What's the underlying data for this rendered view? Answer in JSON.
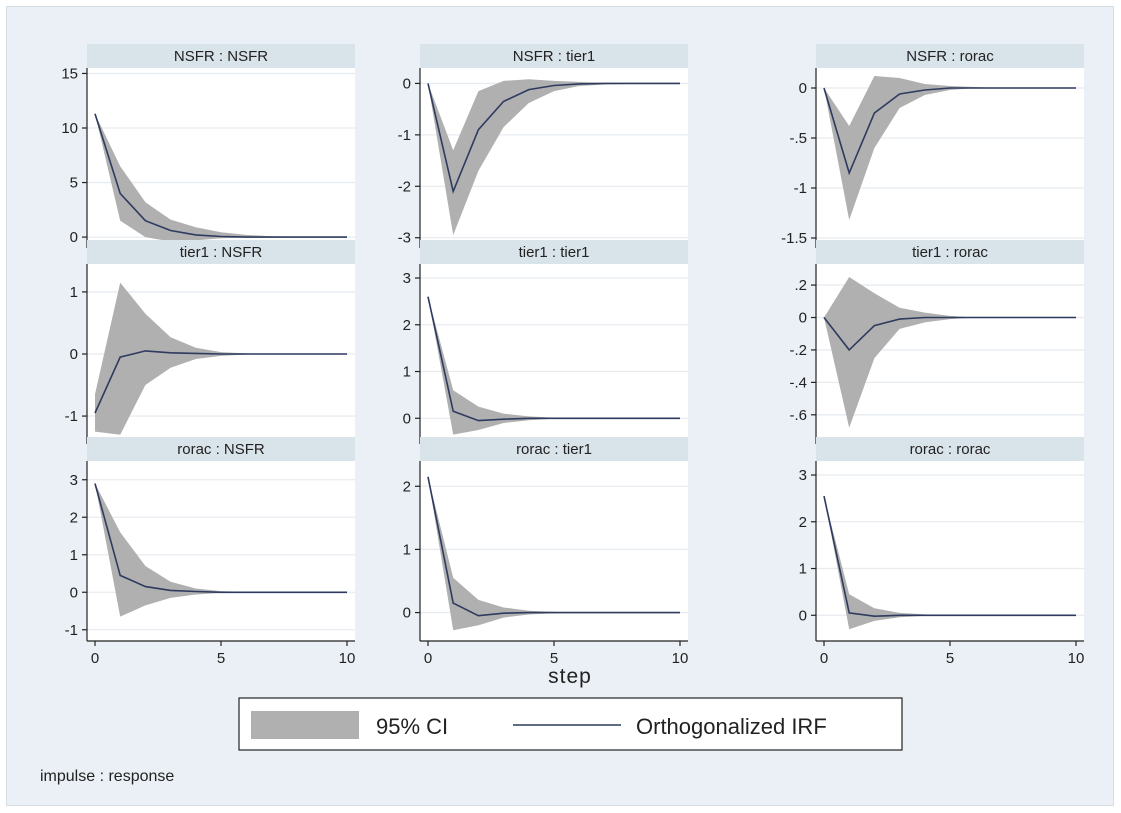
{
  "figure": {
    "x_axis_title": "step",
    "note": "impulse : response",
    "legend": {
      "ci_label": "95% CI",
      "irf_label": "Orthogonalized IRF"
    },
    "colors": {
      "background": "#eaf0f5",
      "panel": "#ffffff",
      "strip": "#d9e3ea",
      "ci_fill": "#b0b0b0",
      "irf_line": "#2e3a5f"
    }
  },
  "chart_data": [
    {
      "type": "line",
      "title": "NSFR : NSFR",
      "x": [
        0,
        1,
        2,
        3,
        4,
        5,
        6,
        7,
        8,
        9,
        10
      ],
      "xticks": [
        0,
        5,
        10
      ],
      "ylim": [
        -1,
        15.5
      ],
      "yticks": [
        {
          "v": 15,
          "label": "15"
        },
        {
          "v": 10,
          "label": "10"
        },
        {
          "v": 5,
          "label": "5"
        },
        {
          "v": 0,
          "label": "0"
        }
      ],
      "series": [
        {
          "values": [
            11.3,
            4.0,
            1.5,
            0.6,
            0.2,
            0.05,
            0.0,
            0.0,
            0.0,
            0.0,
            0.0
          ]
        }
      ],
      "ci_lower": [
        11.3,
        1.5,
        0.0,
        -0.4,
        -0.3,
        -0.1,
        -0.05,
        0.0,
        0.0,
        0.0,
        0.0
      ],
      "ci_upper": [
        11.3,
        6.5,
        3.2,
        1.6,
        0.9,
        0.45,
        0.2,
        0.08,
        0.03,
        0.01,
        0.0
      ]
    },
    {
      "type": "line",
      "title": "NSFR : tier1",
      "x": [
        0,
        1,
        2,
        3,
        4,
        5,
        6,
        7,
        8,
        9,
        10
      ],
      "xticks": [
        0,
        5,
        10
      ],
      "ylim": [
        -3.2,
        0.3
      ],
      "yticks": [
        {
          "v": 0,
          "label": "0"
        },
        {
          "v": -1,
          "label": "-1"
        },
        {
          "v": -2,
          "label": "-2"
        },
        {
          "v": -3,
          "label": "-3"
        }
      ],
      "series": [
        {
          "values": [
            0,
            -2.1,
            -0.9,
            -0.35,
            -0.12,
            -0.04,
            -0.01,
            0.0,
            0.0,
            0.0,
            0.0
          ]
        }
      ],
      "ci_lower": [
        0,
        -2.95,
        -1.7,
        -0.85,
        -0.38,
        -0.15,
        -0.05,
        -0.02,
        -0.01,
        0.0,
        0.0
      ],
      "ci_upper": [
        0,
        -1.3,
        -0.15,
        0.05,
        0.08,
        0.05,
        0.03,
        0.01,
        0.0,
        0.0,
        0.0
      ]
    },
    {
      "type": "line",
      "title": "NSFR : rorac",
      "x": [
        0,
        1,
        2,
        3,
        4,
        5,
        6,
        7,
        8,
        9,
        10
      ],
      "xticks": [
        0,
        5,
        10
      ],
      "ylim": [
        -1.6,
        0.2
      ],
      "yticks": [
        {
          "v": 0,
          "label": "0"
        },
        {
          "v": -0.5,
          "label": "-.5"
        },
        {
          "v": -1,
          "label": "-1"
        },
        {
          "v": -1.5,
          "label": "-1.5"
        }
      ],
      "series": [
        {
          "values": [
            0,
            -0.85,
            -0.25,
            -0.06,
            -0.02,
            0.0,
            0.0,
            0.0,
            0.0,
            0.0,
            0.0
          ]
        }
      ],
      "ci_lower": [
        0,
        -1.32,
        -0.6,
        -0.2,
        -0.07,
        -0.02,
        0.0,
        0.0,
        0.0,
        0.0,
        0.0
      ],
      "ci_upper": [
        0,
        -0.38,
        0.12,
        0.1,
        0.04,
        0.02,
        0.01,
        0.0,
        0.0,
        0.0,
        0.0
      ]
    },
    {
      "type": "line",
      "title": "tier1 : NSFR",
      "x": [
        0,
        1,
        2,
        3,
        4,
        5,
        6,
        7,
        8,
        9,
        10
      ],
      "xticks": [
        0,
        5,
        10
      ],
      "ylim": [
        -1.45,
        1.45
      ],
      "yticks": [
        {
          "v": 1,
          "label": "1"
        },
        {
          "v": 0,
          "label": "0"
        },
        {
          "v": -1,
          "label": "-1"
        }
      ],
      "series": [
        {
          "values": [
            -0.95,
            -0.05,
            0.05,
            0.02,
            0.01,
            0.0,
            0.0,
            0.0,
            0.0,
            0.0,
            0.0
          ]
        }
      ],
      "ci_lower": [
        -1.25,
        -1.3,
        -0.5,
        -0.22,
        -0.08,
        -0.03,
        -0.01,
        0.0,
        0.0,
        0.0,
        0.0
      ],
      "ci_upper": [
        -0.65,
        1.15,
        0.65,
        0.27,
        0.1,
        0.03,
        0.01,
        0.0,
        0.0,
        0.0,
        0.0
      ]
    },
    {
      "type": "line",
      "title": "tier1 : tier1",
      "x": [
        0,
        1,
        2,
        3,
        4,
        5,
        6,
        7,
        8,
        9,
        10
      ],
      "xticks": [
        0,
        5,
        10
      ],
      "ylim": [
        -0.55,
        3.3
      ],
      "yticks": [
        {
          "v": 3,
          "label": "3"
        },
        {
          "v": 2,
          "label": "2"
        },
        {
          "v": 1,
          "label": "1"
        },
        {
          "v": 0,
          "label": "0"
        }
      ],
      "series": [
        {
          "values": [
            2.6,
            0.15,
            -0.05,
            -0.02,
            0.0,
            0.0,
            0.0,
            0.0,
            0.0,
            0.0,
            0.0
          ]
        }
      ],
      "ci_lower": [
        2.6,
        -0.35,
        -0.25,
        -0.1,
        -0.04,
        -0.01,
        0.0,
        0.0,
        0.0,
        0.0,
        0.0
      ],
      "ci_upper": [
        2.6,
        0.6,
        0.25,
        0.1,
        0.04,
        0.01,
        0.0,
        0.0,
        0.0,
        0.0,
        0.0
      ]
    },
    {
      "type": "line",
      "title": "tier1 : rorac",
      "x": [
        0,
        1,
        2,
        3,
        4,
        5,
        6,
        7,
        8,
        9,
        10
      ],
      "xticks": [
        0,
        5,
        10
      ],
      "ylim": [
        -0.78,
        0.33
      ],
      "yticks": [
        {
          "v": 0.2,
          "label": ".2"
        },
        {
          "v": 0,
          "label": "0"
        },
        {
          "v": -0.2,
          "label": "-.2"
        },
        {
          "v": -0.4,
          "label": "-.4"
        },
        {
          "v": -0.6,
          "label": "-.6"
        }
      ],
      "series": [
        {
          "values": [
            0,
            -0.2,
            -0.05,
            -0.01,
            0.0,
            0.0,
            0.0,
            0.0,
            0.0,
            0.0,
            0.0
          ]
        }
      ],
      "ci_lower": [
        0,
        -0.68,
        -0.25,
        -0.07,
        -0.03,
        -0.01,
        0.0,
        0.0,
        0.0,
        0.0,
        0.0
      ],
      "ci_upper": [
        0,
        0.25,
        0.15,
        0.06,
        0.03,
        0.01,
        0.0,
        0.0,
        0.0,
        0.0,
        0.0
      ]
    },
    {
      "type": "line",
      "title": "rorac : NSFR",
      "x": [
        0,
        1,
        2,
        3,
        4,
        5,
        6,
        7,
        8,
        9,
        10
      ],
      "xticks": [
        0,
        5,
        10
      ],
      "ylim": [
        -1.3,
        3.5
      ],
      "yticks": [
        {
          "v": 3,
          "label": "3"
        },
        {
          "v": 2,
          "label": "2"
        },
        {
          "v": 1,
          "label": "1"
        },
        {
          "v": 0,
          "label": "0"
        },
        {
          "v": -1,
          "label": "-1"
        }
      ],
      "series": [
        {
          "values": [
            2.9,
            0.45,
            0.15,
            0.05,
            0.02,
            0.0,
            0.0,
            0.0,
            0.0,
            0.0,
            0.0
          ]
        }
      ],
      "ci_lower": [
        2.9,
        -0.65,
        -0.35,
        -0.15,
        -0.06,
        -0.02,
        0.0,
        0.0,
        0.0,
        0.0,
        0.0
      ],
      "ci_upper": [
        2.9,
        1.6,
        0.7,
        0.28,
        0.1,
        0.03,
        0.01,
        0.0,
        0.0,
        0.0,
        0.0
      ]
    },
    {
      "type": "line",
      "title": "rorac : tier1",
      "x": [
        0,
        1,
        2,
        3,
        4,
        5,
        6,
        7,
        8,
        9,
        10
      ],
      "xticks": [
        0,
        5,
        10
      ],
      "ylim": [
        -0.45,
        2.4
      ],
      "yticks": [
        {
          "v": 2,
          "label": "2"
        },
        {
          "v": 1,
          "label": "1"
        },
        {
          "v": 0,
          "label": "0"
        }
      ],
      "series": [
        {
          "values": [
            2.15,
            0.15,
            -0.05,
            -0.01,
            0.0,
            0.0,
            0.0,
            0.0,
            0.0,
            0.0,
            0.0
          ]
        }
      ],
      "ci_lower": [
        2.15,
        -0.28,
        -0.2,
        -0.08,
        -0.03,
        -0.01,
        0.0,
        0.0,
        0.0,
        0.0,
        0.0
      ],
      "ci_upper": [
        2.15,
        0.55,
        0.2,
        0.08,
        0.03,
        0.01,
        0.0,
        0.0,
        0.0,
        0.0,
        0.0
      ]
    },
    {
      "type": "line",
      "title": "rorac : rorac",
      "x": [
        0,
        1,
        2,
        3,
        4,
        5,
        6,
        7,
        8,
        9,
        10
      ],
      "xticks": [
        0,
        5,
        10
      ],
      "ylim": [
        -0.55,
        3.3
      ],
      "yticks": [
        {
          "v": 3,
          "label": "3"
        },
        {
          "v": 2,
          "label": "2"
        },
        {
          "v": 1,
          "label": "1"
        },
        {
          "v": 0,
          "label": "0"
        }
      ],
      "series": [
        {
          "values": [
            2.55,
            0.05,
            -0.02,
            0.0,
            0.0,
            0.0,
            0.0,
            0.0,
            0.0,
            0.0,
            0.0
          ]
        }
      ],
      "ci_lower": [
        2.55,
        -0.3,
        -0.12,
        -0.04,
        -0.01,
        0.0,
        0.0,
        0.0,
        0.0,
        0.0,
        0.0
      ],
      "ci_upper": [
        2.55,
        0.45,
        0.15,
        0.05,
        0.02,
        0.0,
        0.0,
        0.0,
        0.0,
        0.0,
        0.0
      ]
    }
  ]
}
